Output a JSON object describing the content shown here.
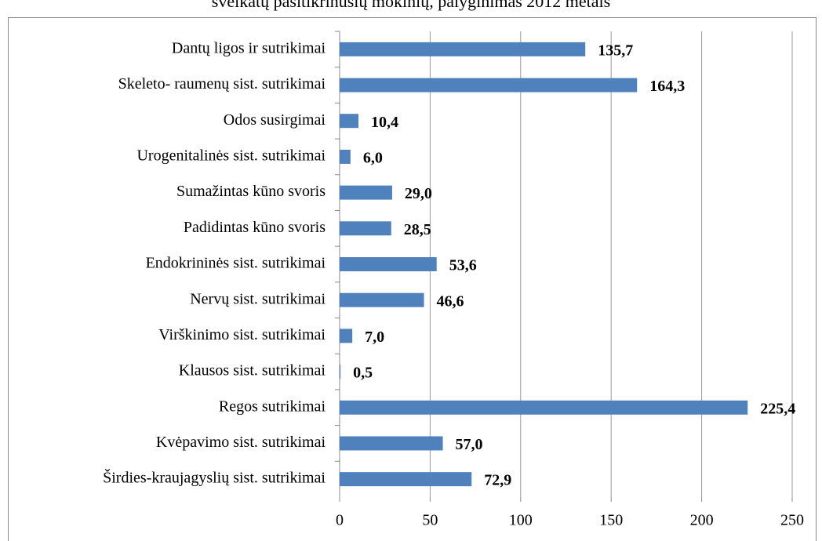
{
  "chart_data": {
    "type": "bar",
    "orientation": "horizontal",
    "title": "sveikatų pasitikrinusių mokinių, palyginimas 2012 metais",
    "categories": [
      "Dantų ligos ir sutrikimai",
      "Skeleto- raumenų sist. sutrikimai",
      "Odos susirgimai",
      "Urogenitalinės sist. sutrikimai",
      "Sumažintas kūno svoris",
      "Padidintas kūno svoris",
      "Endokrininės sist. sutrikimai",
      "Nervų sist. sutrikimai",
      "Virškinimo sist. sutrikimai",
      "Klausos sist. sutrikimai",
      "Regos sutrikimai",
      "Kvėpavimo sist. sutrikimai",
      "Širdies-kraujagyslių sist. sutrikimai"
    ],
    "values": [
      135.7,
      164.3,
      10.4,
      6.0,
      29.0,
      28.5,
      53.6,
      46.6,
      7.0,
      0.5,
      225.4,
      57.0,
      72.9
    ],
    "value_labels": [
      "135,7",
      "164,3",
      "10,4",
      "6,0",
      "29,0",
      "28,5",
      "53,6",
      "46,6",
      "7,0",
      "0,5",
      "225,4",
      "57,0",
      "72,9"
    ],
    "color": "#4f81bd",
    "xlim": [
      0,
      250
    ],
    "xticks": [
      0,
      50,
      100,
      150,
      200,
      250
    ],
    "grid": true
  }
}
